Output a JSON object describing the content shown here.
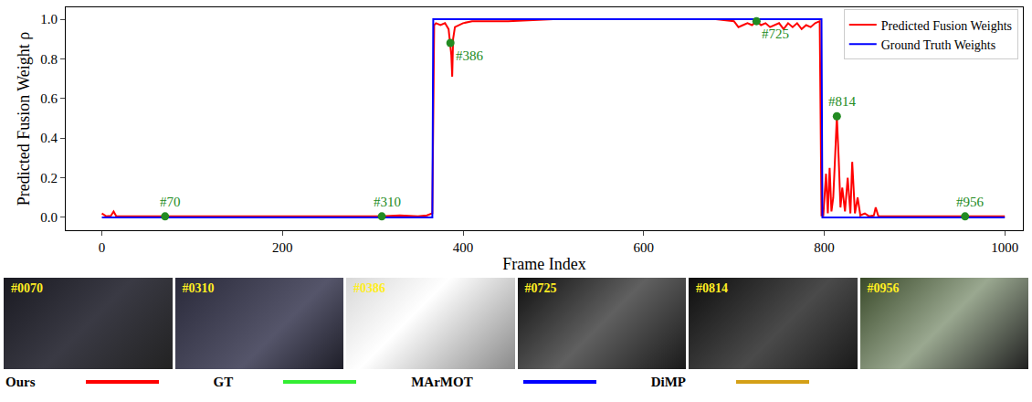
{
  "chart_data": {
    "type": "line",
    "x_label": "Frame Index",
    "y_label": "Predicted Fusion Weight ρ",
    "xlim": [
      -40,
      1020
    ],
    "xticks": [
      0,
      200,
      400,
      600,
      800,
      1000
    ],
    "ylim": [
      -0.065,
      1.06
    ],
    "yticks": [
      {
        "value": 0,
        "label": "0.0"
      },
      {
        "value": 0.2,
        "label": "0.2"
      },
      {
        "value": 0.4,
        "label": "0.4"
      },
      {
        "value": 0.6,
        "label": "0.6"
      },
      {
        "value": 0.8,
        "label": "0.8"
      },
      {
        "value": 1,
        "label": "1.0"
      }
    ],
    "grid": false,
    "legend": "top-right",
    "series": [
      {
        "name": "Predicted Fusion Weights",
        "color": "#ff0000",
        "x": [
          0,
          5,
          10,
          13,
          16,
          20,
          50,
          100,
          150,
          200,
          250,
          300,
          310,
          330,
          350,
          360,
          366,
          368,
          370,
          375,
          380,
          384,
          386,
          387,
          388,
          389,
          391,
          395,
          400,
          410,
          420,
          450,
          500,
          550,
          600,
          650,
          680,
          700,
          705,
          710,
          715,
          720,
          725,
          730,
          735,
          740,
          745,
          750,
          755,
          760,
          765,
          770,
          775,
          780,
          785,
          790,
          795,
          797,
          799,
          802,
          804,
          806,
          808,
          810,
          812,
          814,
          816,
          818,
          820,
          823,
          826,
          829,
          831,
          834,
          837,
          840,
          845,
          850,
          855,
          857,
          860,
          870,
          900,
          950,
          956,
          1000
        ],
        "values": [
          0.02,
          0.005,
          0.008,
          0.03,
          0.005,
          0.005,
          0.005,
          0.005,
          0.005,
          0.005,
          0.005,
          0.005,
          0.005,
          0.01,
          0.005,
          0.01,
          0.02,
          0.97,
          0.98,
          0.97,
          0.98,
          0.95,
          0.88,
          0.82,
          0.71,
          0.9,
          0.96,
          0.97,
          0.98,
          0.99,
          0.99,
          0.99,
          1.0,
          1.0,
          1.0,
          1.0,
          1.0,
          0.99,
          0.96,
          0.97,
          0.98,
          0.97,
          0.99,
          0.97,
          0.98,
          0.96,
          0.97,
          0.98,
          0.95,
          0.98,
          0.96,
          0.98,
          0.95,
          0.97,
          0.96,
          0.98,
          0.99,
          0.01,
          0.01,
          0.22,
          0.02,
          0.25,
          0.03,
          0.1,
          0.3,
          0.51,
          0.3,
          0.05,
          0.15,
          0.03,
          0.2,
          0.02,
          0.28,
          0.02,
          0.1,
          0.01,
          0.02,
          0.005,
          0.01,
          0.05,
          0.005,
          0.005,
          0.005,
          0.005,
          0.005,
          0.005
        ]
      },
      {
        "name": "Ground Truth Weights",
        "color": "#0000ff",
        "x": [
          0,
          366,
          367,
          797,
          798,
          1000
        ],
        "values": [
          0,
          0,
          1,
          1,
          0,
          0
        ]
      }
    ],
    "annotations": [
      {
        "x": 70,
        "y": 0.005,
        "text": "#70",
        "color": "#228b22"
      },
      {
        "x": 310,
        "y": 0.005,
        "text": "#310",
        "color": "#228b22"
      },
      {
        "x": 386,
        "y": 0.88,
        "text": "#386",
        "color": "#228b22"
      },
      {
        "x": 725,
        "y": 0.99,
        "text": "#725",
        "color": "#228b22"
      },
      {
        "x": 814,
        "y": 0.51,
        "text": "#814",
        "color": "#228b22"
      },
      {
        "x": 956,
        "y": 0.005,
        "text": "#956",
        "color": "#228b22"
      }
    ]
  },
  "image_strip": {
    "frames": [
      "#0070",
      "#0310",
      "#0386",
      "#0725",
      "#0814",
      "#0956"
    ]
  },
  "tracker_legend": [
    {
      "name": "Ours",
      "color": "#ff0000"
    },
    {
      "name": "GT",
      "color": "#33ee33"
    },
    {
      "name": "MArMOT",
      "color": "#0000ff"
    },
    {
      "name": "DiMP",
      "color": "#d4a017"
    }
  ]
}
